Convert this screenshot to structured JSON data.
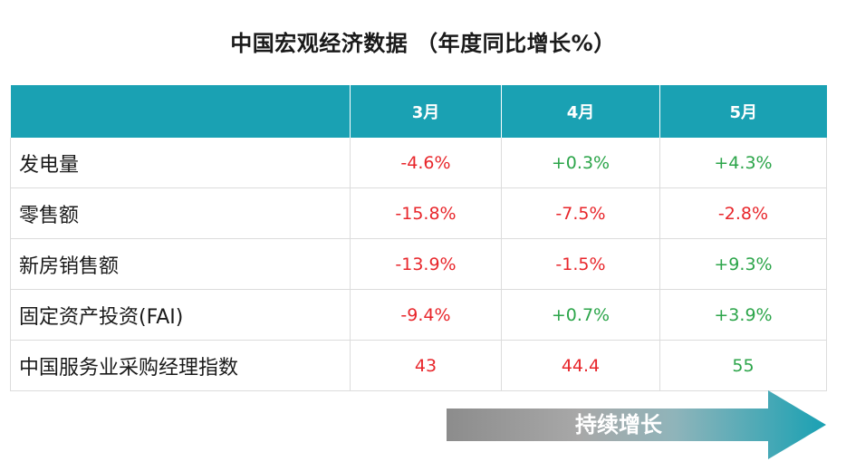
{
  "title": "中国宏观经济数据 （年度同比增长%）",
  "table": {
    "headers": [
      "",
      "3月",
      "4月",
      "5月"
    ],
    "rows": [
      {
        "label": "发电量",
        "values": [
          "-4.6%",
          "+0.3%",
          "+4.3%"
        ],
        "colors": [
          "neg",
          "pos",
          "pos"
        ]
      },
      {
        "label": "零售额",
        "values": [
          "-15.8%",
          "-7.5%",
          "-2.8%"
        ],
        "colors": [
          "neg",
          "neg",
          "neg"
        ]
      },
      {
        "label": "新房销售额",
        "values": [
          "-13.9%",
          "-1.5%",
          "+9.3%"
        ],
        "colors": [
          "neg",
          "neg",
          "pos"
        ]
      },
      {
        "label": "固定资产投资(FAI)",
        "values": [
          "-9.4%",
          "+0.7%",
          "+3.9%"
        ],
        "colors": [
          "neg",
          "pos",
          "pos"
        ]
      },
      {
        "label": "中国服务业采购经理指数",
        "values": [
          "43",
          "44.4",
          "55"
        ],
        "colors": [
          "neg",
          "neg",
          "pos"
        ]
      }
    ]
  },
  "arrow": {
    "label": "持续增长"
  },
  "colors": {
    "header_bg": "#1aa1b3",
    "negative": "#e8262b",
    "positive": "#2ca54a",
    "arrow_start": "#8c8c8c",
    "arrow_end": "#1aa1b3"
  }
}
